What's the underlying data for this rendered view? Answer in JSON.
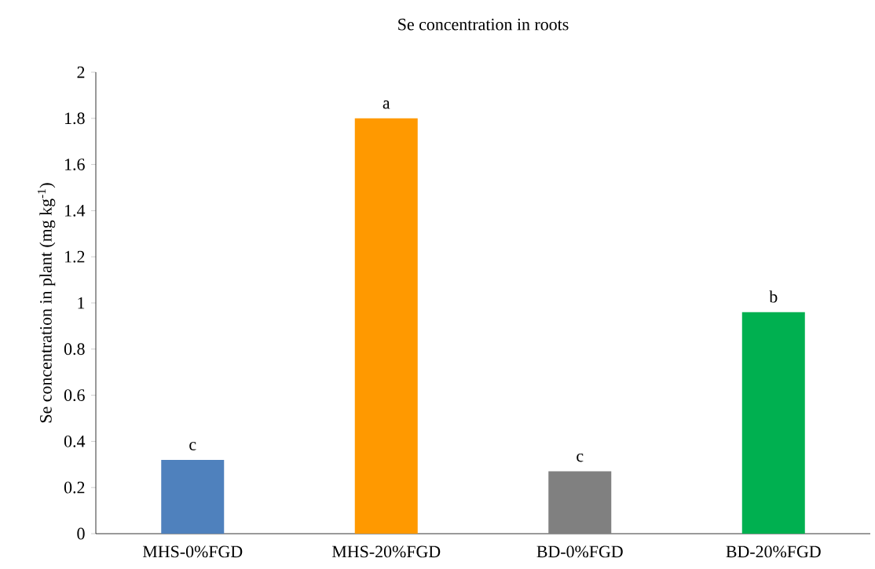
{
  "chart_data": {
    "type": "bar",
    "title": "Se concentration in roots",
    "ylabel": "Se concentration in plant (mg kg$^{-1}$)",
    "categories": [
      "MHS-0%FGD",
      "MHS-20%FGD",
      "BD-0%FGD",
      "BD-20%FGD"
    ],
    "values": [
      0.32,
      1.8,
      0.27,
      0.96
    ],
    "colors": [
      "#4f81bd",
      "#ff9900",
      "#808080",
      "#00b050"
    ],
    "ylim": [
      0,
      2
    ],
    "yticks": [
      0,
      0.2,
      0.4,
      0.6,
      0.8,
      1,
      1.2,
      1.4,
      1.6,
      1.8,
      2
    ],
    "grid": false,
    "annotations": [
      {
        "text": "c",
        "x": "MHS-0%FGD",
        "y": 0.32
      },
      {
        "text": "a",
        "x": "MHS-20%FGD",
        "y": 1.8
      },
      {
        "text": "c",
        "x": "BD-0%FGD",
        "y": 0.27
      },
      {
        "text": "b",
        "x": "BD-20%FGD",
        "y": 0.96
      }
    ]
  }
}
